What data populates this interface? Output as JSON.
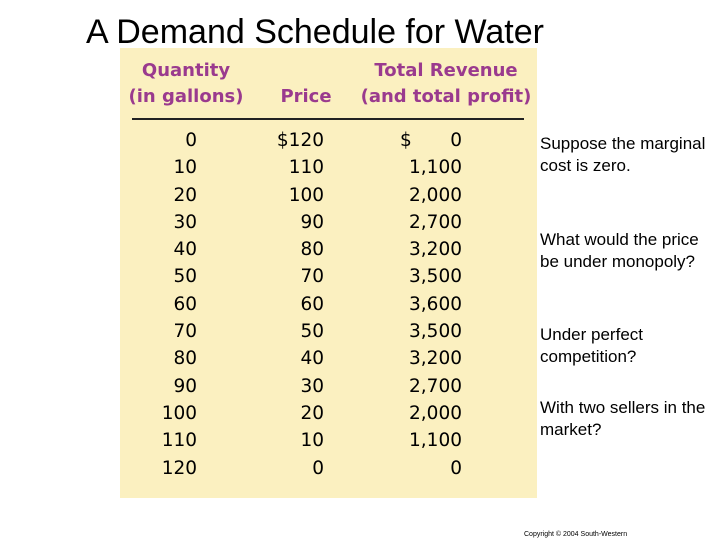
{
  "title": "A Demand Schedule for Water",
  "table": {
    "headers": {
      "quantity": "Quantity (in gallons)",
      "price": "Price",
      "revenue": "Total Revenue (and total profit)"
    },
    "rows": [
      {
        "quantity": "0",
        "price": "$120",
        "revenue_prefix": "$",
        "revenue": "0"
      },
      {
        "quantity": "10",
        "price": "110",
        "revenue_prefix": "",
        "revenue": "1,100"
      },
      {
        "quantity": "20",
        "price": "100",
        "revenue_prefix": "",
        "revenue": "2,000"
      },
      {
        "quantity": "30",
        "price": "90",
        "revenue_prefix": "",
        "revenue": "2,700"
      },
      {
        "quantity": "40",
        "price": "80",
        "revenue_prefix": "",
        "revenue": "3,200"
      },
      {
        "quantity": "50",
        "price": "70",
        "revenue_prefix": "",
        "revenue": "3,500"
      },
      {
        "quantity": "60",
        "price": "60",
        "revenue_prefix": "",
        "revenue": "3,600"
      },
      {
        "quantity": "70",
        "price": "50",
        "revenue_prefix": "",
        "revenue": "3,500"
      },
      {
        "quantity": "80",
        "price": "40",
        "revenue_prefix": "",
        "revenue": "3,200"
      },
      {
        "quantity": "90",
        "price": "30",
        "revenue_prefix": "",
        "revenue": "2,700"
      },
      {
        "quantity": "100",
        "price": "20",
        "revenue_prefix": "",
        "revenue": "2,000"
      },
      {
        "quantity": "110",
        "price": "10",
        "revenue_prefix": "",
        "revenue": "1,100"
      },
      {
        "quantity": "120",
        "price": "0",
        "revenue_prefix": "",
        "revenue": "0"
      }
    ]
  },
  "sidebar": [
    "Suppose the marginal cost is zero.",
    "What would the price be under monopoly?",
    "Under perfect competition?",
    "With two sellers in the market?"
  ],
  "copyright": "Copyright © 2004 South-Western",
  "colors": {
    "panel_bg": "#fbf0c0",
    "header_text": "#9a3a8e"
  }
}
